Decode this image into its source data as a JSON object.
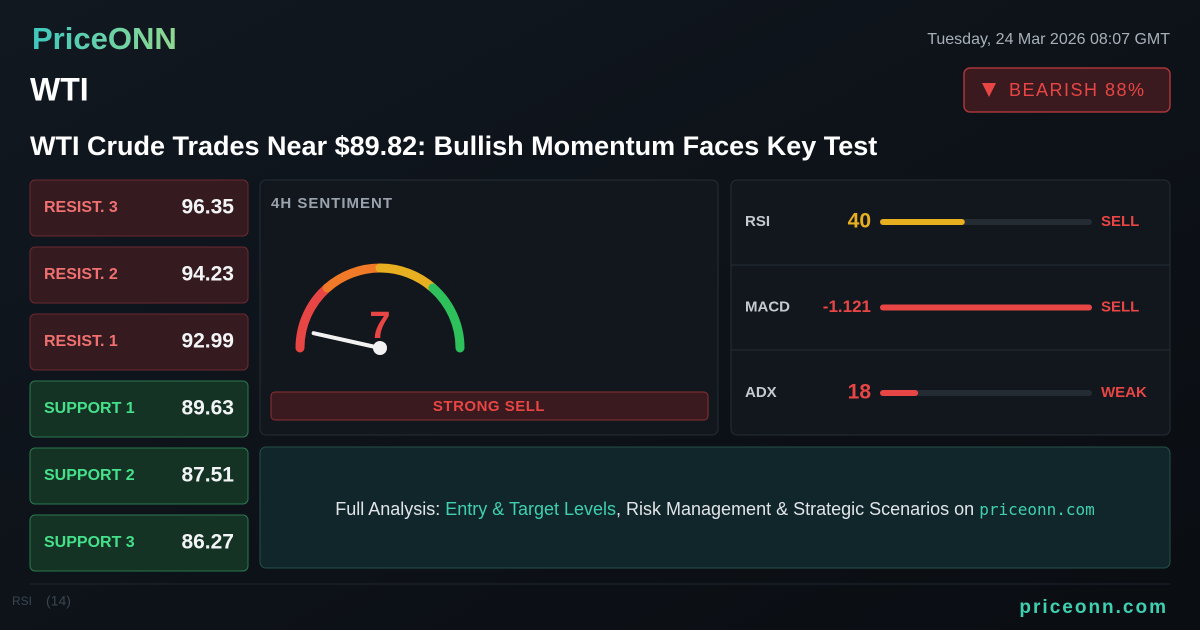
{
  "header": {
    "brand": "PriceONN",
    "datetime": "Tuesday, 24 Mar 2026 08:07 GMT",
    "symbol": "WTI",
    "badge": "BEARISH 88%",
    "headline": "WTI Crude Trades Near $89.82: Bullish Momentum Faces Key Test"
  },
  "levels": [
    {
      "label": "RESIST. 3",
      "value": "96.35",
      "kind": "resist"
    },
    {
      "label": "RESIST. 2",
      "value": "94.23",
      "kind": "resist"
    },
    {
      "label": "RESIST. 1",
      "value": "92.99",
      "kind": "resist"
    },
    {
      "label": "SUPPORT 1",
      "value": "89.63",
      "kind": "support"
    },
    {
      "label": "SUPPORT 2",
      "value": "87.51",
      "kind": "support"
    },
    {
      "label": "SUPPORT 3",
      "value": "86.27",
      "kind": "support"
    }
  ],
  "sentiment": {
    "title": "4H SENTIMENT",
    "score": 7,
    "max": 100,
    "label": "STRONG SELL"
  },
  "indicators": [
    {
      "name": "RSI",
      "value": 40,
      "signal": "SELL",
      "color": "#e8b020",
      "fill": 0.4
    },
    {
      "name": "MACD",
      "value": -1.121,
      "signal": "SELL",
      "color": "#e84545",
      "fill": 1
    },
    {
      "name": "ADX",
      "value": 18,
      "signal": "WEAK",
      "color": "#e84545",
      "fill": 0.18
    }
  ],
  "cta": {
    "lead": "Full Analysis: ",
    "link1": "Entry & Target Levels",
    "middle": ", Risk Management & Strategic Scenarios on ",
    "site": "priceonn.com"
  },
  "background": {
    "indicator": "RSI",
    "period": "(14)"
  },
  "footer": {
    "site": "priceonn.com"
  }
}
